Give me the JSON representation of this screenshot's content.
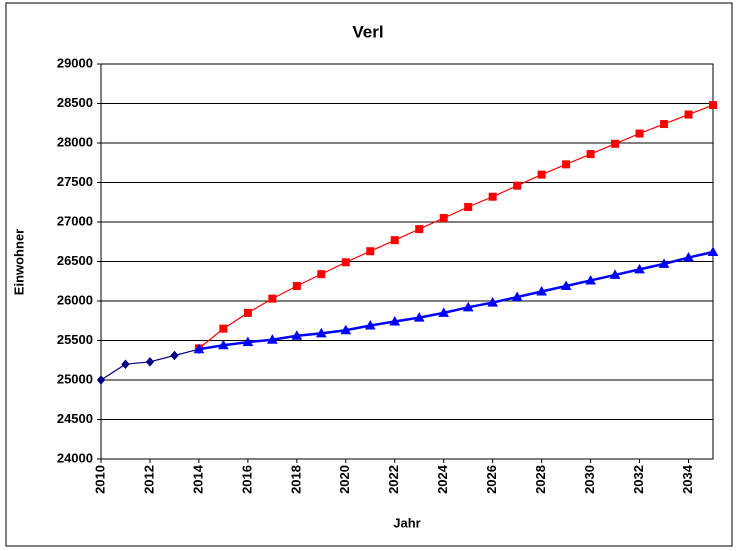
{
  "chart_data": {
    "type": "line",
    "title": "Verl",
    "x_label": "Jahr",
    "y_label": "Einwohner",
    "x": [
      2010,
      2011,
      2012,
      2013,
      2014,
      2015,
      2016,
      2017,
      2018,
      2019,
      2020,
      2021,
      2022,
      2023,
      2024,
      2025,
      2026,
      2027,
      2028,
      2029,
      2030,
      2031,
      2032,
      2033,
      2034,
      2035
    ],
    "series": [
      {
        "color": "#000080",
        "marker": "diamond",
        "values": [
          25000,
          25200,
          25230,
          25310,
          25390,
          null,
          null,
          null,
          null,
          null,
          null,
          null,
          null,
          null,
          null,
          null,
          null,
          null,
          null,
          null,
          null,
          null,
          null,
          null,
          null,
          null
        ]
      },
      {
        "color": "#ff0000",
        "marker": "square",
        "values": [
          null,
          null,
          null,
          null,
          25400,
          25650,
          25850,
          26030,
          26190,
          26340,
          26490,
          26630,
          26770,
          26910,
          27050,
          27190,
          27320,
          27460,
          27600,
          27730,
          27860,
          27990,
          28120,
          28240,
          28360,
          28480
        ]
      },
      {
        "color": "#0000ff",
        "marker": "triangle",
        "values": [
          null,
          null,
          null,
          null,
          25390,
          25440,
          25480,
          25510,
          25560,
          25590,
          25630,
          25690,
          25740,
          25790,
          25850,
          25920,
          25980,
          26050,
          26120,
          26190,
          26260,
          26330,
          26400,
          26470,
          26550,
          26620
        ]
      }
    ],
    "xlim": [
      2010,
      2035
    ],
    "xticks": [
      2010,
      2012,
      2014,
      2016,
      2018,
      2020,
      2022,
      2024,
      2026,
      2028,
      2030,
      2032,
      2034
    ],
    "ylim": [
      24000,
      29000
    ],
    "yticks": [
      24000,
      24500,
      25000,
      25500,
      26000,
      26500,
      27000,
      27500,
      28000,
      28500,
      29000
    ],
    "grid": true
  }
}
